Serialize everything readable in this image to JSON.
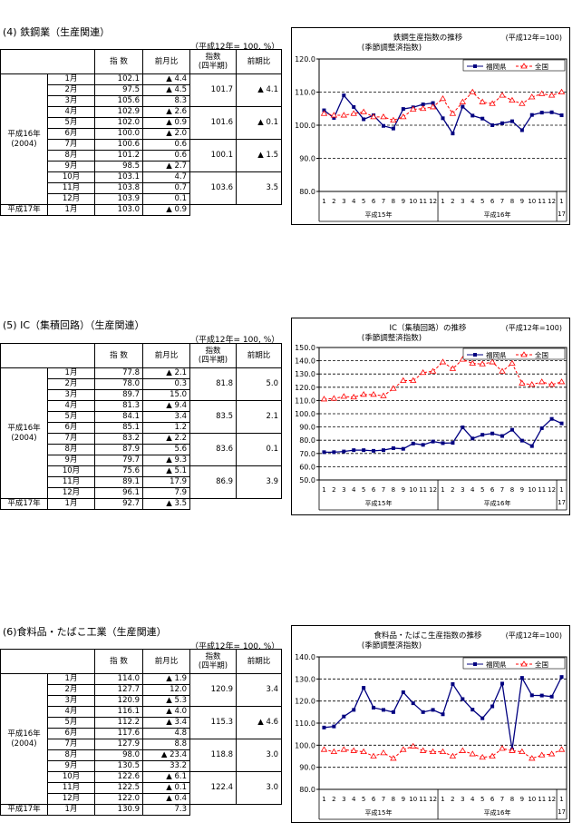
{
  "sections": [
    {
      "title": "(4) 鉄鋼業（生産関連）",
      "unit_note": "（平成12年= 100, %）",
      "headers": {
        "index": "指 数",
        "mom": "前月比",
        "quarter_index": "指数\n(四半期)",
        "qoq": "前期比"
      },
      "year_label": "平成16年\n(2004)",
      "next_year_label": "平成17年",
      "rows": [
        {
          "month": "1月",
          "index": "102.1",
          "mom": "▲ 4.4"
        },
        {
          "month": "2月",
          "index": "97.5",
          "mom": "▲ 4.5"
        },
        {
          "month": "3月",
          "index": "105.6",
          "mom": "8.3"
        },
        {
          "month": "4月",
          "index": "102.9",
          "mom": "▲ 2.6"
        },
        {
          "month": "5月",
          "index": "102.0",
          "mom": "▲ 0.9"
        },
        {
          "month": "6月",
          "index": "100.0",
          "mom": "▲ 2.0"
        },
        {
          "month": "7月",
          "index": "100.6",
          "mom": "0.6"
        },
        {
          "month": "8月",
          "index": "101.2",
          "mom": "0.6"
        },
        {
          "month": "9月",
          "index": "98.5",
          "mom": "▲ 2.7"
        },
        {
          "month": "10月",
          "index": "103.1",
          "mom": "4.7"
        },
        {
          "month": "11月",
          "index": "103.8",
          "mom": "0.7"
        },
        {
          "month": "12月",
          "index": "103.9",
          "mom": "0.1"
        }
      ],
      "quarters": [
        {
          "index": "101.7",
          "qoq": "▲ 4.1"
        },
        {
          "index": "101.6",
          "qoq": "▲ 0.1"
        },
        {
          "index": "100.1",
          "qoq": "▲ 1.5"
        },
        {
          "index": "103.6",
          "qoq": "3.5"
        }
      ],
      "last_row": {
        "month": "1月",
        "index": "103.0",
        "mom": "▲ 0.9"
      }
    },
    {
      "title": "(5) IC（集積回路）（生産関連）",
      "unit_note": "（平成12年= 100, %）",
      "headers": {
        "index": "指 数",
        "mom": "前月比",
        "quarter_index": "指数\n(四半期)",
        "qoq": "前期比"
      },
      "year_label": "平成16年\n(2004)",
      "next_year_label": "平成17年",
      "rows": [
        {
          "month": "1月",
          "index": "77.8",
          "mom": "▲ 2.1"
        },
        {
          "month": "2月",
          "index": "78.0",
          "mom": "0.3"
        },
        {
          "month": "3月",
          "index": "89.7",
          "mom": "15.0"
        },
        {
          "month": "4月",
          "index": "81.3",
          "mom": "▲ 9.4"
        },
        {
          "month": "5月",
          "index": "84.1",
          "mom": "3.4"
        },
        {
          "month": "6月",
          "index": "85.1",
          "mom": "1.2"
        },
        {
          "month": "7月",
          "index": "83.2",
          "mom": "▲ 2.2"
        },
        {
          "month": "8月",
          "index": "87.9",
          "mom": "5.6"
        },
        {
          "month": "9月",
          "index": "79.7",
          "mom": "▲ 9.3"
        },
        {
          "month": "10月",
          "index": "75.6",
          "mom": "▲ 5.1"
        },
        {
          "month": "11月",
          "index": "89.1",
          "mom": "17.9"
        },
        {
          "month": "12月",
          "index": "96.1",
          "mom": "7.9"
        }
      ],
      "quarters": [
        {
          "index": "81.8",
          "qoq": "5.0"
        },
        {
          "index": "83.5",
          "qoq": "2.1"
        },
        {
          "index": "83.6",
          "qoq": "0.1"
        },
        {
          "index": "86.9",
          "qoq": "3.9"
        }
      ],
      "last_row": {
        "month": "1月",
        "index": "92.7",
        "mom": "▲ 3.5"
      }
    },
    {
      "title": "(6)食料品・たばこ工業（生産関連）",
      "unit_note": "（平成12年= 100, %）",
      "headers": {
        "index": "指 数",
        "mom": "前月比",
        "quarter_index": "指数\n(四半期)",
        "qoq": "前期比"
      },
      "year_label": "平成16年\n(2004)",
      "next_year_label": "平成17年",
      "rows": [
        {
          "month": "1月",
          "index": "114.0",
          "mom": "▲ 1.9"
        },
        {
          "month": "2月",
          "index": "127.7",
          "mom": "12.0"
        },
        {
          "month": "3月",
          "index": "120.9",
          "mom": "▲ 5.3"
        },
        {
          "month": "4月",
          "index": "116.1",
          "mom": "▲ 4.0"
        },
        {
          "month": "5月",
          "index": "112.2",
          "mom": "▲ 3.4"
        },
        {
          "month": "6月",
          "index": "117.6",
          "mom": "4.8"
        },
        {
          "month": "7月",
          "index": "127.9",
          "mom": "8.8"
        },
        {
          "month": "8月",
          "index": "98.0",
          "mom": "▲ 23.4"
        },
        {
          "month": "9月",
          "index": "130.5",
          "mom": "33.2"
        },
        {
          "month": "10月",
          "index": "122.6",
          "mom": "▲ 6.1"
        },
        {
          "month": "11月",
          "index": "122.5",
          "mom": "▲ 0.1"
        },
        {
          "month": "12月",
          "index": "122.0",
          "mom": "▲ 0.4"
        }
      ],
      "quarters": [
        {
          "index": "120.9",
          "qoq": "3.4"
        },
        {
          "index": "115.3",
          "qoq": "▲ 4.6"
        },
        {
          "index": "118.8",
          "qoq": "3.0"
        },
        {
          "index": "122.4",
          "qoq": "3.0"
        }
      ],
      "last_row": {
        "month": "1月",
        "index": "130.9",
        "mom": "7.3"
      }
    }
  ],
  "chart_data": [
    {
      "type": "line",
      "title": "鉄鋼生産指数の推移",
      "subtitle": "(季節調整済指数)",
      "base_note": "(平成12年=100)",
      "x": [
        "1",
        "2",
        "3",
        "4",
        "5",
        "6",
        "7",
        "8",
        "9",
        "10",
        "11",
        "12",
        "1",
        "2",
        "3",
        "4",
        "5",
        "6",
        "7",
        "8",
        "9",
        "10",
        "11",
        "12",
        "1"
      ],
      "x_group_labels": [
        "平成15年",
        "平成16年",
        "17"
      ],
      "ylim": [
        80,
        120
      ],
      "yticks": [
        "80.0",
        "90.0",
        "100.0",
        "110.0",
        "120.0"
      ],
      "grid": true,
      "legend_position": "top-right",
      "series": [
        {
          "name": "福岡県",
          "color": "#000080",
          "marker": "square",
          "style": "solid",
          "values": [
            104.5,
            102.2,
            109.0,
            105.5,
            101.8,
            103.0,
            99.8,
            99.0,
            104.9,
            105.4,
            106.3,
            106.7,
            102.1,
            97.5,
            105.6,
            102.9,
            102.0,
            100.0,
            100.6,
            101.2,
            98.5,
            103.1,
            103.8,
            103.9,
            103.0
          ]
        },
        {
          "name": "全国",
          "color": "#ff0000",
          "marker": "triangle",
          "style": "dashed",
          "values": [
            103.5,
            103.0,
            103.0,
            103.5,
            104.0,
            102.5,
            102.5,
            101.5,
            102.5,
            104.8,
            105.0,
            105.5,
            108.0,
            103.5,
            107.0,
            110.0,
            107.0,
            106.5,
            109.0,
            107.5,
            106.5,
            108.5,
            109.5,
            109.0,
            110.0
          ]
        }
      ]
    },
    {
      "type": "line",
      "title": "IC（集積回路）の推移",
      "subtitle": "(季節調整済指数)",
      "base_note": "(平成12年=100)",
      "x": [
        "1",
        "2",
        "3",
        "4",
        "5",
        "6",
        "7",
        "8",
        "9",
        "10",
        "11",
        "12",
        "1",
        "2",
        "3",
        "4",
        "5",
        "6",
        "7",
        "8",
        "9",
        "10",
        "11",
        "12",
        "1"
      ],
      "x_group_labels": [
        "平成15年",
        "平成16年",
        "17"
      ],
      "ylim": [
        50,
        150
      ],
      "yticks": [
        "50.0",
        "60.0",
        "70.0",
        "80.0",
        "90.0",
        "100.0",
        "110.0",
        "120.0",
        "130.0",
        "140.0",
        "150.0"
      ],
      "grid": true,
      "legend_position": "top-right",
      "series": [
        {
          "name": "福岡県",
          "color": "#000080",
          "marker": "square",
          "style": "solid",
          "values": [
            71.0,
            71.0,
            71.5,
            72.5,
            72.5,
            72.0,
            72.5,
            74.0,
            73.5,
            77.5,
            76.5,
            79.0,
            77.8,
            78.0,
            89.7,
            81.3,
            84.1,
            85.1,
            83.2,
            87.9,
            79.7,
            75.6,
            89.1,
            96.1,
            92.7
          ]
        },
        {
          "name": "全国",
          "color": "#ff0000",
          "marker": "triangle",
          "style": "dashed",
          "values": [
            111.0,
            111.5,
            113.0,
            112.5,
            114.5,
            114.5,
            113.5,
            119.0,
            125.0,
            125.0,
            131.0,
            132.0,
            139.0,
            134.0,
            141.0,
            138.0,
            137.5,
            139.0,
            132.0,
            138.0,
            123.0,
            122.0,
            124.0,
            122.0,
            124.0
          ]
        }
      ]
    },
    {
      "type": "line",
      "title": "食料品・たばこ生産指数の推移",
      "subtitle": "(季節調整済指数)",
      "base_note": "(平成12年=100)",
      "x": [
        "1",
        "2",
        "3",
        "4",
        "5",
        "6",
        "7",
        "8",
        "9",
        "10",
        "11",
        "12",
        "1",
        "2",
        "3",
        "4",
        "5",
        "6",
        "7",
        "8",
        "9",
        "10",
        "11",
        "12",
        "1"
      ],
      "x_group_labels": [
        "平成15年",
        "平成16年",
        "17"
      ],
      "ylim": [
        80,
        140
      ],
      "yticks": [
        "80.0",
        "90.0",
        "100.0",
        "110.0",
        "120.0",
        "130.0",
        "140.0"
      ],
      "grid": true,
      "legend_position": "top-right",
      "series": [
        {
          "name": "福岡県",
          "color": "#000080",
          "marker": "square",
          "style": "solid",
          "values": [
            108.0,
            108.5,
            113.0,
            116.0,
            126.0,
            117.0,
            116.0,
            115.0,
            124.0,
            119.0,
            115.0,
            116.0,
            114.0,
            127.7,
            120.9,
            116.1,
            112.2,
            117.6,
            127.9,
            98.0,
            130.5,
            122.6,
            122.5,
            122.0,
            130.9
          ]
        },
        {
          "name": "全国",
          "color": "#ff0000",
          "marker": "triangle",
          "style": "dashed",
          "values": [
            98.0,
            97.0,
            98.0,
            97.5,
            97.0,
            95.0,
            96.5,
            94.0,
            98.0,
            99.5,
            97.5,
            97.0,
            97.0,
            95.0,
            97.5,
            96.0,
            94.5,
            95.0,
            98.5,
            97.5,
            97.0,
            94.0,
            95.5,
            96.0,
            98.0
          ]
        }
      ]
    }
  ]
}
